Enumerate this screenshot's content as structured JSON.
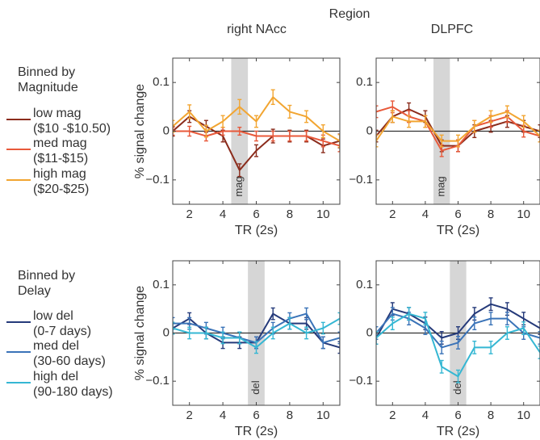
{
  "figure": {
    "region_label": "Region",
    "column_titles": [
      "right NAcc",
      "DLPFC"
    ]
  },
  "legends": [
    {
      "title_lines": [
        "Binned by",
        "Magnitude"
      ],
      "entries": [
        {
          "lines": [
            "low mag",
            "($10 -$10.50)"
          ],
          "color": "#8b2c1c"
        },
        {
          "lines": [
            "med mag",
            "($11-$15)"
          ],
          "color": "#e8593a"
        },
        {
          "lines": [
            "high mag",
            "($20-$25)"
          ],
          "color": "#f2a531"
        }
      ]
    },
    {
      "title_lines": [
        "Binned by",
        "Delay"
      ],
      "entries": [
        {
          "lines": [
            "low del",
            "(0-7 days)"
          ],
          "color": "#253a7a"
        },
        {
          "lines": [
            "med del",
            "(30-60 days)"
          ],
          "color": "#3a73b8"
        },
        {
          "lines": [
            "high del",
            "(90-180 days)"
          ],
          "color": "#35b7d3"
        }
      ]
    }
  ],
  "chart_data": [
    {
      "type": "line",
      "row": "magnitude",
      "column": "right NAcc",
      "xlabel": "TR (2s)",
      "ylabel": "% signal change",
      "xlim": [
        1,
        11
      ],
      "ylim": [
        -0.15,
        0.15
      ],
      "xticks": [
        2,
        4,
        6,
        8,
        10
      ],
      "yticks": [
        -0.1,
        0,
        0.1
      ],
      "ytick_labels": [
        "−0.1",
        "0",
        "0.1"
      ],
      "shaded_band": {
        "x": [
          4.5,
          5.5
        ],
        "label": "mag"
      },
      "zero_line": true,
      "error_bars": true,
      "x": [
        1,
        2,
        3,
        4,
        5,
        6,
        7,
        8,
        9,
        10,
        11
      ],
      "series": [
        {
          "name": "low mag",
          "color": "#8b2c1c",
          "values": [
            0.0,
            0.03,
            0.01,
            -0.01,
            -0.08,
            -0.04,
            -0.01,
            -0.01,
            -0.01,
            -0.03,
            -0.02
          ],
          "errors": [
            0.01,
            0.012,
            0.012,
            0.012,
            0.013,
            0.012,
            0.014,
            0.012,
            0.012,
            0.014,
            0.014
          ]
        },
        {
          "name": "med mag",
          "color": "#e8593a",
          "values": [
            0.0,
            0.0,
            -0.01,
            0.0,
            0.0,
            -0.01,
            -0.01,
            -0.01,
            -0.01,
            -0.02,
            -0.03
          ],
          "errors": [
            0.008,
            0.01,
            0.01,
            0.008,
            0.008,
            0.01,
            0.01,
            0.01,
            0.01,
            0.012,
            0.012
          ]
        },
        {
          "name": "high mag",
          "color": "#f2a531",
          "values": [
            0.01,
            0.04,
            0.0,
            0.02,
            0.05,
            0.02,
            0.07,
            0.04,
            0.03,
            0.0,
            -0.02
          ],
          "errors": [
            0.012,
            0.014,
            0.012,
            0.012,
            0.015,
            0.012,
            0.015,
            0.013,
            0.012,
            0.013,
            0.013
          ]
        }
      ]
    },
    {
      "type": "line",
      "row": "magnitude",
      "column": "DLPFC",
      "xlabel": "TR (2s)",
      "ylabel": "",
      "xlim": [
        1,
        11
      ],
      "ylim": [
        -0.15,
        0.15
      ],
      "xticks": [
        2,
        4,
        6,
        8,
        10
      ],
      "yticks": [
        -0.1,
        0,
        0.1
      ],
      "ytick_labels": [
        "−0.1",
        "0",
        "0.1"
      ],
      "shaded_band": {
        "x": [
          4.5,
          5.5
        ],
        "label": "mag"
      },
      "zero_line": true,
      "error_bars": true,
      "x": [
        1,
        2,
        3,
        4,
        5,
        6,
        7,
        8,
        9,
        10,
        11
      ],
      "series": [
        {
          "name": "low mag",
          "color": "#8b2c1c",
          "values": [
            -0.01,
            0.03,
            0.045,
            0.03,
            -0.03,
            -0.03,
            0.0,
            0.01,
            0.02,
            0.01,
            0.0
          ],
          "errors": [
            0.012,
            0.012,
            0.013,
            0.012,
            0.012,
            0.012,
            0.013,
            0.012,
            0.012,
            0.012,
            0.013
          ]
        },
        {
          "name": "med mag",
          "color": "#e8593a",
          "values": [
            0.04,
            0.05,
            0.03,
            0.02,
            -0.04,
            -0.03,
            0.01,
            0.02,
            0.03,
            0.0,
            -0.01
          ],
          "errors": [
            0.012,
            0.012,
            0.012,
            0.012,
            0.012,
            0.012,
            0.012,
            0.012,
            0.012,
            0.012,
            0.012
          ]
        },
        {
          "name": "high mag",
          "color": "#f2a531",
          "values": [
            -0.02,
            0.03,
            0.02,
            0.02,
            -0.02,
            -0.02,
            0.01,
            0.03,
            0.04,
            0.02,
            -0.01
          ],
          "errors": [
            0.012,
            0.012,
            0.012,
            0.012,
            0.012,
            0.012,
            0.012,
            0.012,
            0.012,
            0.012,
            0.012
          ]
        }
      ]
    },
    {
      "type": "line",
      "row": "delay",
      "column": "right NAcc",
      "xlabel": "TR (2s)",
      "ylabel": "% signal change",
      "xlim": [
        1,
        11
      ],
      "ylim": [
        -0.15,
        0.15
      ],
      "xticks": [
        2,
        4,
        6,
        8,
        10
      ],
      "yticks": [
        -0.1,
        0,
        0.1
      ],
      "ytick_labels": [
        "−0.1",
        "0",
        "0.1"
      ],
      "shaded_band": {
        "x": [
          5.5,
          6.5
        ],
        "label": "del"
      },
      "zero_line": true,
      "error_bars": true,
      "x": [
        1,
        2,
        3,
        4,
        5,
        6,
        7,
        8,
        9,
        10,
        11
      ],
      "series": [
        {
          "name": "low del",
          "color": "#253a7a",
          "values": [
            0.01,
            0.03,
            0.0,
            -0.02,
            -0.02,
            -0.02,
            0.04,
            0.02,
            0.02,
            -0.02,
            -0.03
          ],
          "errors": [
            0.012,
            0.012,
            0.012,
            0.012,
            0.012,
            0.012,
            0.012,
            0.012,
            0.012,
            0.012,
            0.012
          ]
        },
        {
          "name": "med del",
          "color": "#3a73b8",
          "values": [
            0.02,
            0.02,
            0.01,
            0.0,
            -0.01,
            -0.02,
            0.01,
            0.03,
            0.04,
            -0.02,
            -0.01
          ],
          "errors": [
            0.012,
            0.012,
            0.012,
            0.012,
            0.012,
            0.012,
            0.012,
            0.012,
            0.012,
            0.012,
            0.012
          ]
        },
        {
          "name": "high del",
          "color": "#35b7d3",
          "values": [
            0.01,
            0.0,
            0.0,
            -0.01,
            -0.01,
            -0.03,
            0.0,
            0.02,
            0.0,
            0.01,
            0.03
          ],
          "errors": [
            0.012,
            0.012,
            0.012,
            0.012,
            0.012,
            0.012,
            0.012,
            0.012,
            0.012,
            0.012,
            0.012
          ]
        }
      ]
    },
    {
      "type": "line",
      "row": "delay",
      "column": "DLPFC",
      "xlabel": "TR (2s)",
      "ylabel": "",
      "xlim": [
        1,
        11
      ],
      "ylim": [
        -0.15,
        0.15
      ],
      "xticks": [
        2,
        4,
        6,
        8,
        10
      ],
      "yticks": [
        -0.1,
        0,
        0.1
      ],
      "ytick_labels": [
        "−0.1",
        "0",
        "0.1"
      ],
      "shaded_band": {
        "x": [
          5.5,
          6.5
        ],
        "label": "del"
      },
      "zero_line": true,
      "error_bars": true,
      "x": [
        1,
        2,
        3,
        4,
        5,
        6,
        7,
        8,
        9,
        10,
        11
      ],
      "series": [
        {
          "name": "low del",
          "color": "#253a7a",
          "values": [
            -0.01,
            0.05,
            0.04,
            0.02,
            -0.01,
            0.0,
            0.04,
            0.06,
            0.05,
            0.03,
            0.01
          ],
          "errors": [
            0.013,
            0.013,
            0.013,
            0.013,
            0.013,
            0.013,
            0.013,
            0.013,
            0.013,
            0.013,
            0.013
          ]
        },
        {
          "name": "med del",
          "color": "#3a73b8",
          "values": [
            0.0,
            0.04,
            0.03,
            0.01,
            -0.03,
            -0.02,
            0.02,
            0.03,
            0.03,
            0.0,
            -0.01
          ],
          "errors": [
            0.013,
            0.013,
            0.013,
            0.013,
            0.013,
            0.013,
            0.013,
            0.013,
            0.013,
            0.013,
            0.013
          ]
        },
        {
          "name": "high del",
          "color": "#35b7d3",
          "values": [
            -0.01,
            0.02,
            0.04,
            0.03,
            -0.07,
            -0.09,
            -0.03,
            -0.03,
            0.0,
            0.01,
            -0.04
          ],
          "errors": [
            0.013,
            0.013,
            0.013,
            0.013,
            0.013,
            0.013,
            0.013,
            0.013,
            0.013,
            0.013,
            0.013
          ]
        }
      ]
    }
  ]
}
